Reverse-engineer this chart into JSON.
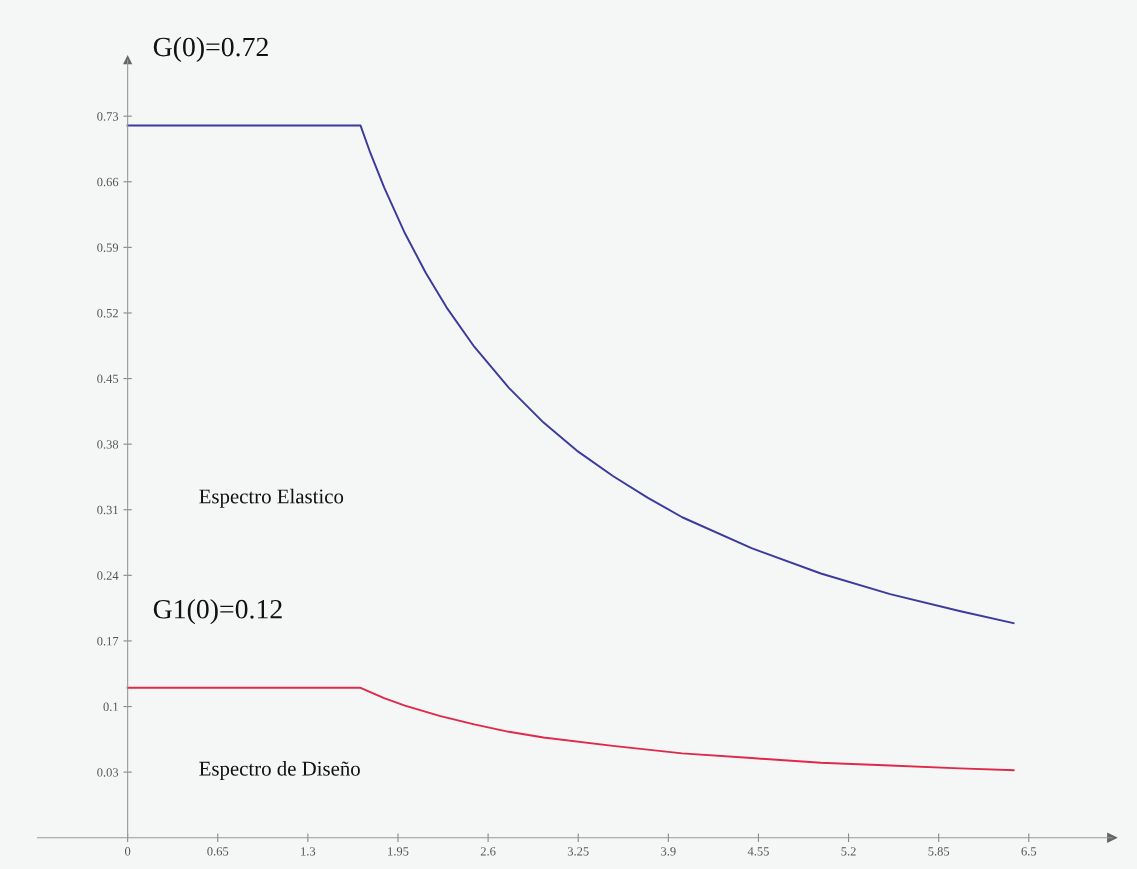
{
  "chart_data": {
    "type": "line",
    "xlim": [
      -0.65,
      7.1
    ],
    "ylim": [
      -0.04,
      0.79
    ],
    "xticks": [
      0,
      0.65,
      1.3,
      1.95,
      2.6,
      3.25,
      3.9,
      4.55,
      5.2,
      5.85,
      6.5
    ],
    "yticks": [
      0.03,
      0.1,
      0.17,
      0.24,
      0.31,
      0.38,
      0.45,
      0.52,
      0.59,
      0.66,
      0.73
    ],
    "grid": false,
    "legend": false,
    "series": [
      {
        "color": "#3b3b9c",
        "x": [
          0,
          1.68,
          1.75,
          1.85,
          2.0,
          2.15,
          2.3,
          2.5,
          2.75,
          3.0,
          3.25,
          3.5,
          3.75,
          4.0,
          4.5,
          5.0,
          5.5,
          6.0,
          6.39
        ],
        "values": [
          0.72,
          0.72,
          0.691,
          0.654,
          0.605,
          0.563,
          0.526,
          0.484,
          0.44,
          0.403,
          0.372,
          0.346,
          0.323,
          0.302,
          0.269,
          0.242,
          0.22,
          0.202,
          0.189
        ]
      },
      {
        "color": "#e0284a",
        "x": [
          0,
          1.68,
          1.85,
          2.0,
          2.25,
          2.5,
          2.75,
          3.0,
          3.5,
          4.0,
          4.5,
          5.0,
          5.5,
          6.0,
          6.39
        ],
        "values": [
          0.12,
          0.12,
          0.109,
          0.101,
          0.09,
          0.081,
          0.073,
          0.067,
          0.058,
          0.05,
          0.045,
          0.04,
          0.037,
          0.034,
          0.032
        ]
      }
    ],
    "annotations": [
      {
        "text": "G(0)=0.72",
        "x": 0,
        "y": 0.72
      },
      {
        "text": "G1(0)=0.12",
        "x": 0,
        "y": 0.12
      },
      "Espectro Elastico",
      "Espectro de Diseño"
    ]
  }
}
